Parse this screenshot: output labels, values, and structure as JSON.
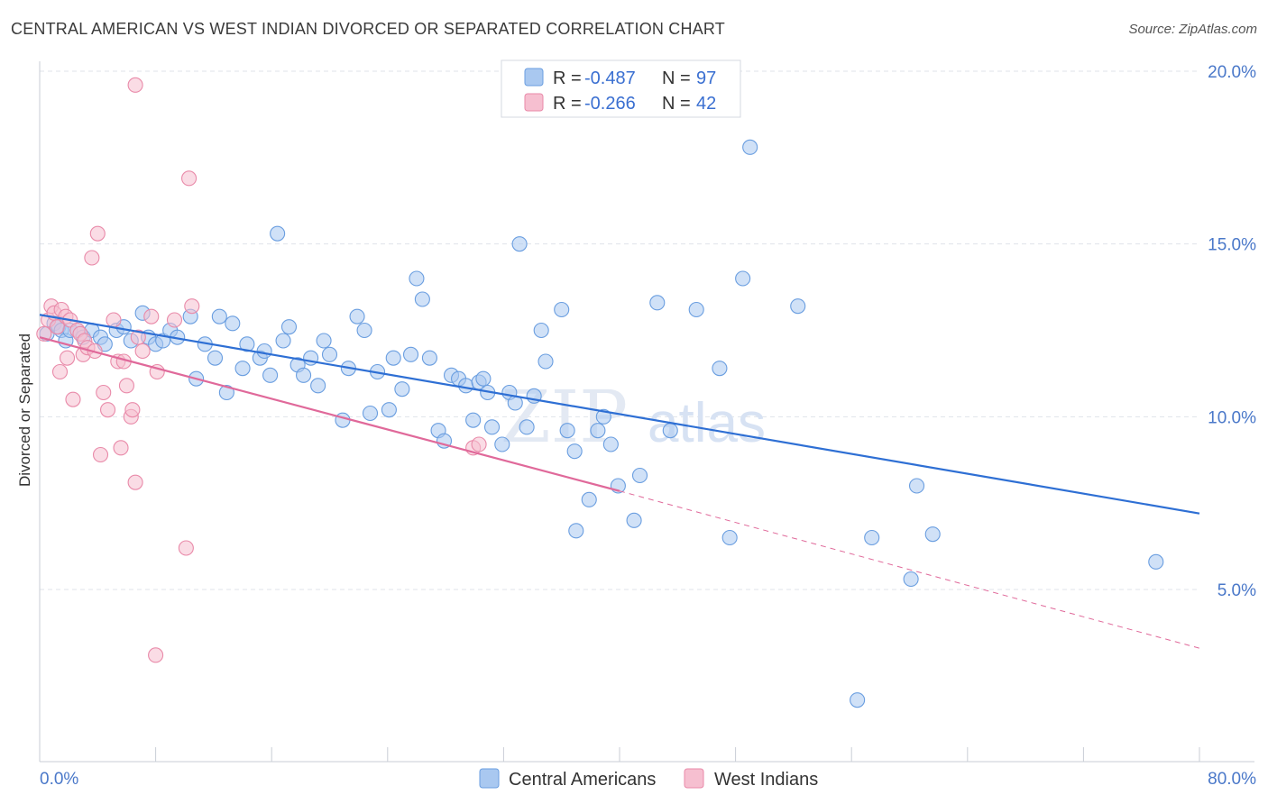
{
  "title": "CENTRAL AMERICAN VS WEST INDIAN DIVORCED OR SEPARATED CORRELATION CHART",
  "source": "Source: ZipAtlas.com",
  "watermark": {
    "zip": "ZIP",
    "atlas": "atlas"
  },
  "colors": {
    "blue_fill": "#a9c8f0",
    "blue_stroke": "#6a9ee0",
    "blue_line": "#2e6fd4",
    "pink_fill": "#f6bfd0",
    "pink_stroke": "#e98aa9",
    "pink_line": "#e0699a",
    "grid": "#dfe3ea",
    "axis_text": "#4a78c9"
  },
  "legend_top": {
    "r_label": "R =",
    "n_label": "N =",
    "rows": [
      {
        "r": "-0.487",
        "n": "97"
      },
      {
        "r": "-0.266",
        "n": "42"
      }
    ]
  },
  "chart_data": {
    "type": "scatter",
    "title": "CENTRAL AMERICAN VS WEST INDIAN DIVORCED OR SEPARATED CORRELATION CHART",
    "xlabel": "",
    "ylabel": "Divorced or Separated",
    "xlim": [
      0,
      80
    ],
    "ylim": [
      0,
      20.5
    ],
    "x_tick_labels": [
      "0.0%",
      "80.0%"
    ],
    "y_ticks": [
      5,
      10,
      15,
      20
    ],
    "y_tick_labels": [
      "5.0%",
      "10.0%",
      "15.0%",
      "20.0%"
    ],
    "grid": true,
    "legend_position": "bottom-center",
    "series": [
      {
        "name": "Central Americans",
        "color": "#a9c8f0",
        "r": -0.487,
        "n": 97,
        "trend": {
          "x": [
            0,
            80
          ],
          "y": [
            12.95,
            7.2
          ],
          "extend_dashed_to": null
        },
        "points": [
          [
            0.5,
            12.4
          ],
          [
            1.0,
            12.7
          ],
          [
            1.3,
            12.6
          ],
          [
            1.5,
            12.5
          ],
          [
            1.8,
            12.2
          ],
          [
            2.1,
            12.5
          ],
          [
            2.6,
            12.5
          ],
          [
            3.0,
            12.3
          ],
          [
            3.6,
            12.5
          ],
          [
            4.2,
            12.3
          ],
          [
            4.5,
            12.1
          ],
          [
            5.3,
            12.5
          ],
          [
            5.8,
            12.6
          ],
          [
            6.3,
            12.2
          ],
          [
            7.1,
            13.0
          ],
          [
            7.5,
            12.3
          ],
          [
            8.0,
            12.1
          ],
          [
            8.5,
            12.2
          ],
          [
            9.0,
            12.5
          ],
          [
            9.5,
            12.3
          ],
          [
            10.4,
            12.9
          ],
          [
            10.8,
            11.1
          ],
          [
            11.4,
            12.1
          ],
          [
            12.1,
            11.7
          ],
          [
            12.4,
            12.9
          ],
          [
            12.9,
            10.7
          ],
          [
            13.3,
            12.7
          ],
          [
            14.0,
            11.4
          ],
          [
            14.3,
            12.1
          ],
          [
            15.2,
            11.7
          ],
          [
            15.5,
            11.9
          ],
          [
            15.9,
            11.2
          ],
          [
            16.4,
            15.3
          ],
          [
            16.8,
            12.2
          ],
          [
            17.2,
            12.6
          ],
          [
            17.8,
            11.5
          ],
          [
            18.2,
            11.2
          ],
          [
            18.7,
            11.7
          ],
          [
            19.2,
            10.9
          ],
          [
            19.6,
            12.2
          ],
          [
            20.0,
            11.8
          ],
          [
            20.9,
            9.9
          ],
          [
            21.3,
            11.4
          ],
          [
            21.9,
            12.9
          ],
          [
            22.4,
            12.5
          ],
          [
            22.8,
            10.1
          ],
          [
            23.3,
            11.3
          ],
          [
            24.1,
            10.2
          ],
          [
            24.4,
            11.7
          ],
          [
            25.0,
            10.8
          ],
          [
            25.6,
            11.8
          ],
          [
            26.0,
            14.0
          ],
          [
            26.4,
            13.4
          ],
          [
            26.9,
            11.7
          ],
          [
            27.5,
            9.6
          ],
          [
            27.9,
            9.3
          ],
          [
            28.4,
            11.2
          ],
          [
            28.9,
            11.1
          ],
          [
            29.4,
            10.9
          ],
          [
            29.9,
            9.9
          ],
          [
            30.3,
            11.0
          ],
          [
            30.6,
            11.1
          ],
          [
            30.9,
            10.7
          ],
          [
            31.2,
            9.7
          ],
          [
            31.9,
            9.2
          ],
          [
            32.4,
            10.7
          ],
          [
            32.8,
            10.4
          ],
          [
            33.1,
            15.0
          ],
          [
            33.6,
            9.7
          ],
          [
            34.1,
            10.6
          ],
          [
            34.6,
            12.5
          ],
          [
            34.9,
            11.6
          ],
          [
            36.0,
            13.1
          ],
          [
            36.4,
            9.6
          ],
          [
            36.9,
            9.0
          ],
          [
            37.9,
            7.6
          ],
          [
            38.5,
            9.6
          ],
          [
            38.9,
            10.0
          ],
          [
            39.4,
            9.2
          ],
          [
            39.9,
            8.0
          ],
          [
            41.0,
            7.0
          ],
          [
            41.4,
            8.3
          ],
          [
            42.6,
            13.3
          ],
          [
            43.5,
            9.6
          ],
          [
            45.3,
            13.1
          ],
          [
            46.9,
            11.4
          ],
          [
            47.6,
            6.5
          ],
          [
            48.5,
            14.0
          ],
          [
            49.0,
            17.8
          ],
          [
            52.3,
            13.2
          ],
          [
            56.4,
            1.8
          ],
          [
            57.4,
            6.5
          ],
          [
            60.1,
            5.3
          ],
          [
            60.5,
            8.0
          ],
          [
            61.6,
            6.6
          ],
          [
            77.0,
            5.8
          ],
          [
            37.0,
            6.7
          ]
        ]
      },
      {
        "name": "West Indians",
        "color": "#f6bfd0",
        "r": -0.266,
        "n": 42,
        "trend": {
          "x": [
            0,
            40
          ],
          "y": [
            12.3,
            7.85
          ],
          "extend_dashed_to": [
            80,
            3.3
          ]
        },
        "points": [
          [
            0.3,
            12.4
          ],
          [
            0.6,
            12.8
          ],
          [
            0.8,
            13.2
          ],
          [
            1.0,
            13.0
          ],
          [
            1.2,
            12.6
          ],
          [
            1.4,
            11.3
          ],
          [
            1.5,
            13.1
          ],
          [
            1.8,
            12.9
          ],
          [
            1.9,
            11.7
          ],
          [
            2.1,
            12.8
          ],
          [
            2.3,
            10.5
          ],
          [
            2.6,
            12.5
          ],
          [
            2.8,
            12.4
          ],
          [
            3.0,
            11.8
          ],
          [
            3.1,
            12.2
          ],
          [
            3.3,
            12.0
          ],
          [
            3.6,
            14.6
          ],
          [
            3.8,
            11.9
          ],
          [
            4.0,
            15.3
          ],
          [
            4.2,
            8.9
          ],
          [
            4.4,
            10.7
          ],
          [
            4.7,
            10.2
          ],
          [
            5.1,
            12.8
          ],
          [
            5.4,
            11.6
          ],
          [
            5.6,
            9.1
          ],
          [
            5.8,
            11.6
          ],
          [
            6.0,
            10.9
          ],
          [
            6.3,
            10.0
          ],
          [
            6.4,
            10.2
          ],
          [
            6.6,
            8.1
          ],
          [
            6.8,
            12.3
          ],
          [
            7.1,
            11.9
          ],
          [
            7.7,
            12.9
          ],
          [
            8.0,
            3.1
          ],
          [
            8.1,
            11.3
          ],
          [
            9.3,
            12.8
          ],
          [
            10.1,
            6.2
          ],
          [
            10.3,
            16.9
          ],
          [
            10.5,
            13.2
          ],
          [
            6.6,
            19.6
          ],
          [
            29.9,
            9.1
          ],
          [
            30.3,
            9.2
          ]
        ]
      }
    ]
  }
}
